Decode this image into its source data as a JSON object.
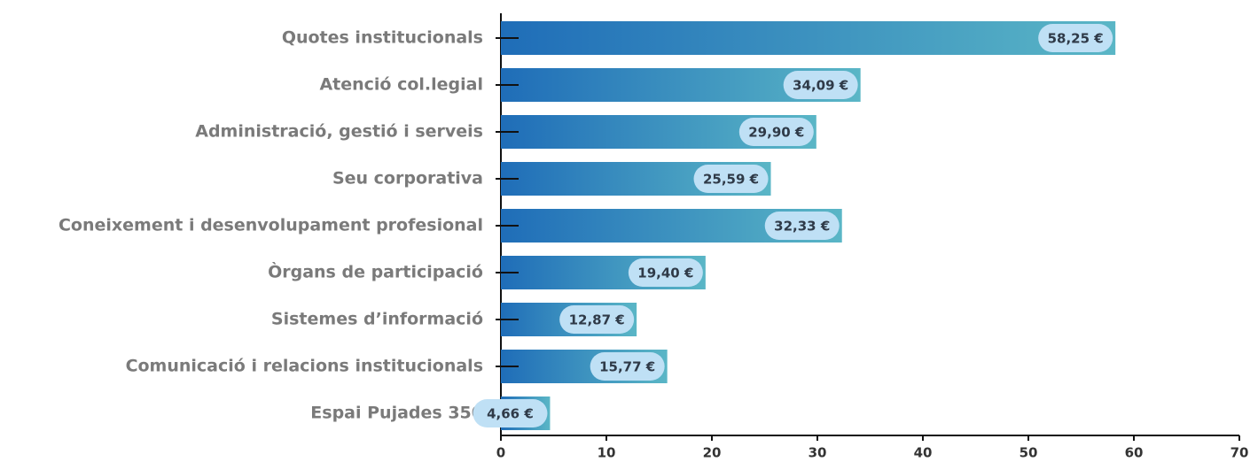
{
  "chart_data": {
    "type": "barh",
    "categories": [
      "Quotes institucionals",
      "Atenció col.legial",
      "Administració, gestió i serveis",
      "Seu corporativa",
      "Coneixement i desenvolupament profesional",
      "Òrgans de participació",
      "Sistemes d’informació",
      "Comunicació i relacions institucionals",
      "Espai Pujades 350"
    ],
    "values": [
      58.25,
      34.09,
      29.9,
      25.59,
      32.33,
      19.4,
      12.87,
      15.77,
      4.66
    ],
    "value_labels": [
      "58,25 €",
      "34,09 €",
      "29,90 €",
      "25,59 €",
      "32,33 €",
      "19,40 €",
      "12,87 €",
      "15,77 €",
      "4,66 €"
    ],
    "color": [
      "#1f6db8",
      "#5ab6c6"
    ],
    "xlim": [
      0,
      70
    ],
    "xticks": [
      0,
      10,
      20,
      30,
      40,
      50,
      60,
      70
    ]
  }
}
